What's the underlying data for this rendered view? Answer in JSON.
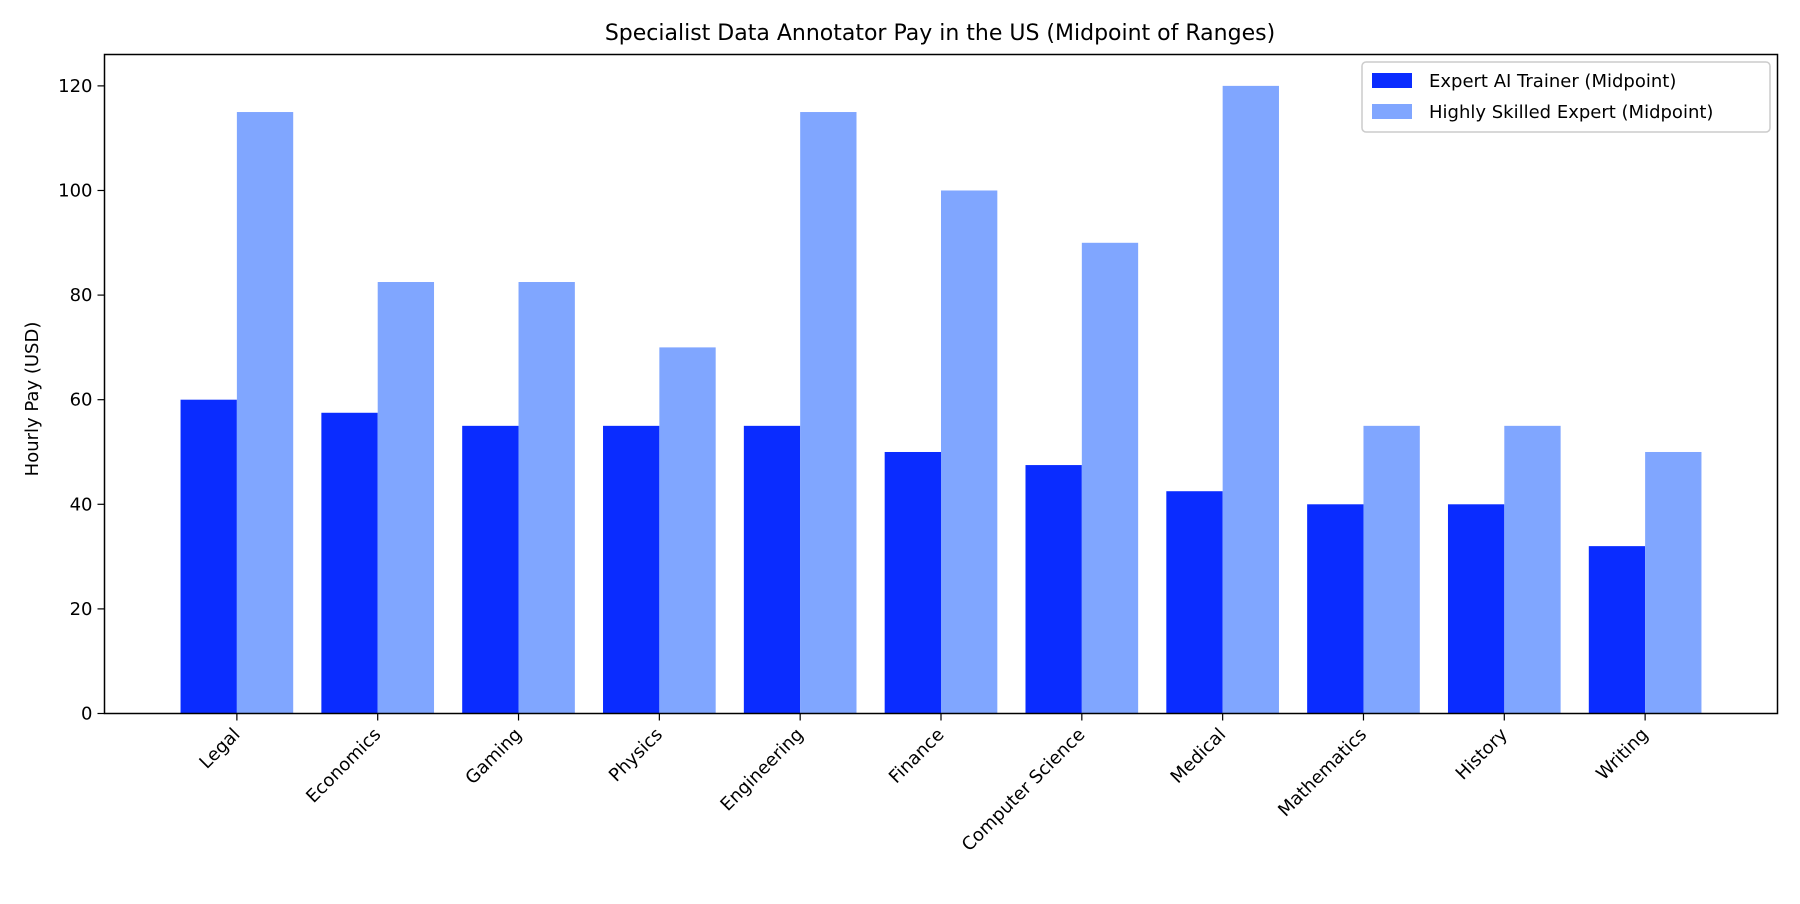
{
  "chart_data": {
    "type": "bar",
    "title": "Specialist Data Annotator Pay in the US (Midpoint of Ranges)",
    "xlabel": "",
    "ylabel": "Hourly Pay (USD)",
    "ylim": [
      0,
      126
    ],
    "yticks": [
      0,
      20,
      40,
      60,
      80,
      100,
      120
    ],
    "grid": false,
    "legend_position": "top-right",
    "categories": [
      "Legal",
      "Economics",
      "Gaming",
      "Physics",
      "Engineering",
      "Finance",
      "Computer Science",
      "Medical",
      "Mathematics",
      "History",
      "Writing"
    ],
    "series": [
      {
        "name": "Expert AI Trainer (Midpoint)",
        "color": "#0a2cff",
        "values": [
          60,
          57.5,
          55,
          55,
          55,
          50,
          47.5,
          42.5,
          40,
          40,
          32
        ]
      },
      {
        "name": "Highly Skilled Expert (Midpoint)",
        "color": "#80a6ff",
        "values": [
          115,
          82.5,
          82.5,
          70,
          115,
          100,
          90,
          120,
          55,
          55,
          50
        ]
      }
    ]
  }
}
